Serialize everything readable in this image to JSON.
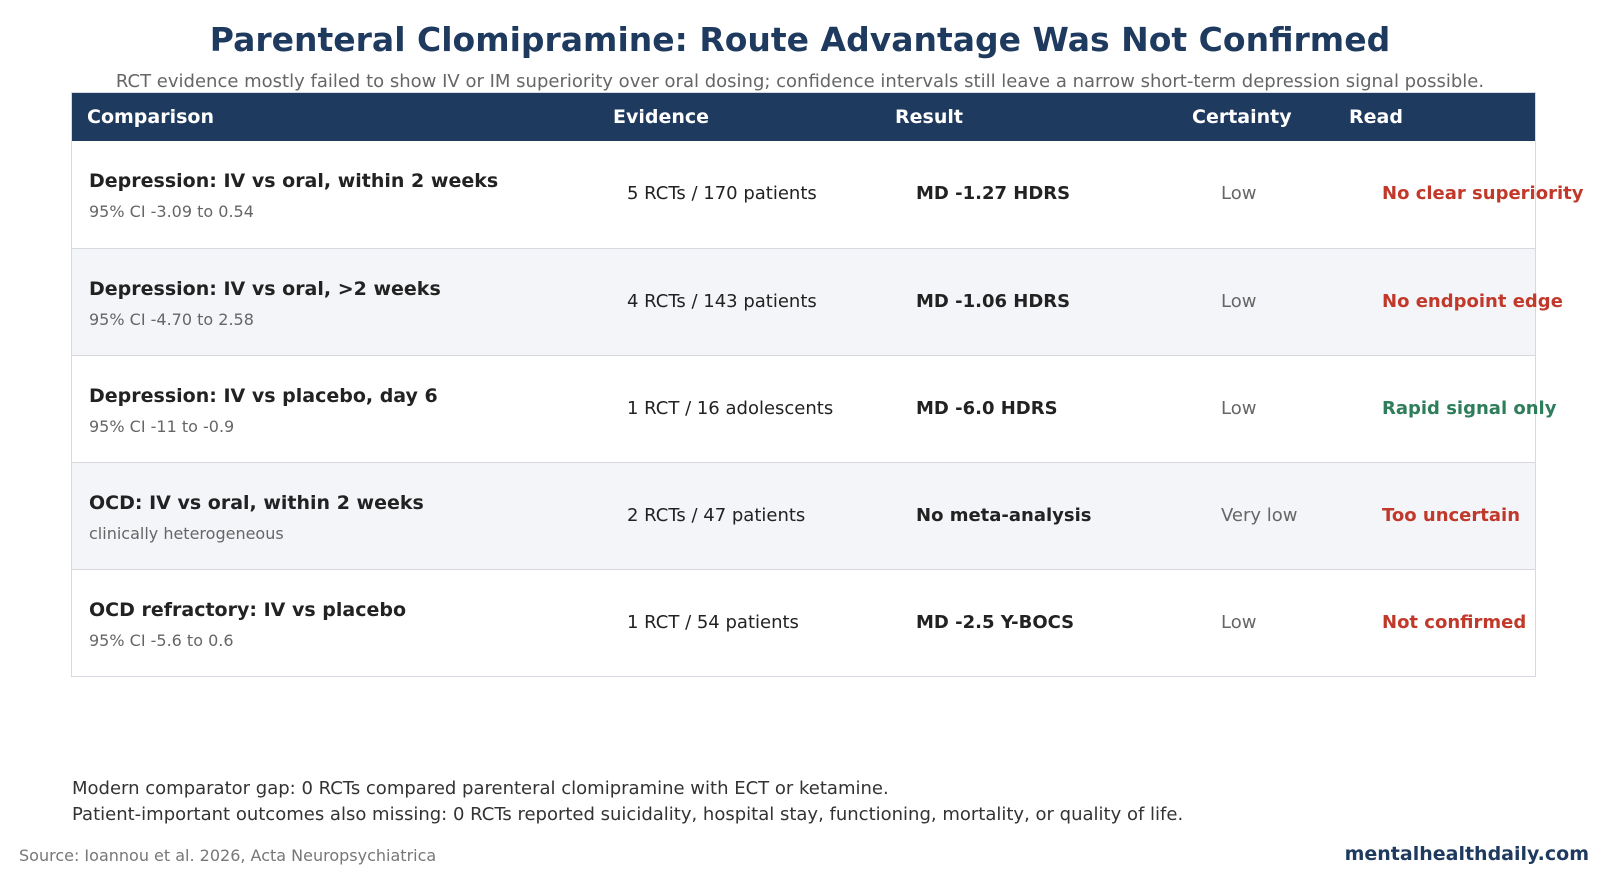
{
  "title": "Parenteral Clomipramine: Route Advantage Was Not Confirmed",
  "subtitle": "RCT evidence mostly failed to show IV or IM superiority over oral dosing; confidence intervals still leave a narrow short-term depression signal possible.",
  "colors": {
    "header_bg": "#1f3a5f",
    "negative": "#c0392b",
    "positive": "#2e7d5b",
    "alt_row": "#f4f5f8"
  },
  "table": {
    "headers": [
      "Comparison",
      "Evidence",
      "Result",
      "Certainty",
      "Read"
    ],
    "rows": [
      {
        "comparison": "Depression: IV vs oral, within 2 weeks",
        "detail": "95% CI -3.09 to 0.54",
        "evidence": "5 RCTs / 170 patients",
        "result": "MD -1.27 HDRS",
        "certainty": "Low",
        "read": "No clear superiority",
        "read_color": "#c0392b"
      },
      {
        "comparison": "Depression: IV vs oral, >2 weeks",
        "detail": "95% CI -4.70 to 2.58",
        "evidence": "4 RCTs / 143 patients",
        "result": "MD -1.06 HDRS",
        "certainty": "Low",
        "read": "No endpoint edge",
        "read_color": "#c0392b"
      },
      {
        "comparison": "Depression: IV vs placebo, day 6",
        "detail": "95% CI -11 to -0.9",
        "evidence": "1 RCT / 16 adolescents",
        "result": "MD -6.0 HDRS",
        "certainty": "Low",
        "read": "Rapid signal only",
        "read_color": "#2e7d5b"
      },
      {
        "comparison": "OCD: IV vs oral, within 2 weeks",
        "detail": "clinically heterogeneous",
        "evidence": "2 RCTs / 47 patients",
        "result": "No meta-analysis",
        "certainty": "Very low",
        "read": "Too uncertain",
        "read_color": "#c0392b"
      },
      {
        "comparison": "OCD refractory: IV vs placebo",
        "detail": "95% CI -5.6 to 0.6",
        "evidence": "1 RCT / 54 patients",
        "result": "MD -2.5 Y-BOCS",
        "certainty": "Low",
        "read": "Not confirmed",
        "read_color": "#c0392b"
      }
    ]
  },
  "notes": [
    "Modern comparator gap: 0 RCTs compared parenteral clomipramine with ECT or ketamine.",
    "Patient-important outcomes also missing: 0 RCTs reported suicidality, hospital stay, functioning, mortality, or quality of life."
  ],
  "source": "Source: Ioannou et al. 2026, Acta Neuropsychiatrica",
  "brand": "mentalhealthdaily.com"
}
